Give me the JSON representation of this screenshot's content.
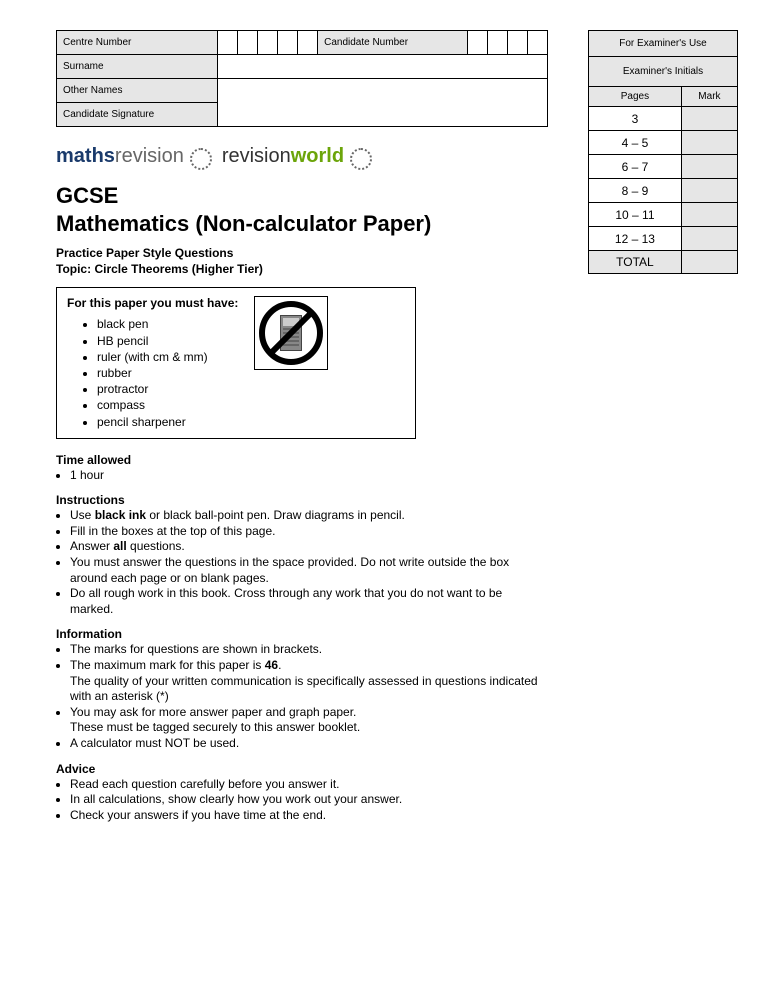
{
  "candidate_box": {
    "centre_number_label": "Centre Number",
    "candidate_number_label": "Candidate Number",
    "surname_label": "Surname",
    "other_names_label": "Other Names",
    "candidate_signature_label": "Candidate Signature"
  },
  "logos": {
    "maths_prefix": "maths",
    "maths_suffix": "revision",
    "rw_prefix": "revision",
    "rw_suffix": "world"
  },
  "title_line1": "GCSE",
  "title_line2": "Mathematics (Non-calculator Paper)",
  "subtitle_line1": "Practice Paper Style Questions",
  "subtitle_line2": "Topic: Circle Theorems (Higher Tier)",
  "equipment": {
    "heading": "For this paper you must have:",
    "items": [
      "black pen",
      "HB pencil",
      "ruler (with cm & mm)",
      "rubber",
      "protractor",
      "compass",
      "pencil sharpener"
    ]
  },
  "time": {
    "heading": "Time allowed",
    "items": [
      "1 hour"
    ]
  },
  "instructions": {
    "heading": "Instructions",
    "items": [
      "Use <b>black ink</b> or black ball-point pen. Draw diagrams in pencil.",
      "Fill in the boxes at the top of this page.",
      "Answer <b>all</b> questions.",
      "You must answer the questions in the space provided. Do not write outside the box around each page or on blank pages.",
      "Do all rough work in this book. Cross through any work that you do not want to be marked."
    ]
  },
  "information": {
    "heading": "Information",
    "items": [
      "The marks for questions are shown in brackets.",
      "The maximum mark for this paper is <b>46</b>.<br>The quality of your written communication is specifically assessed in questions indicated with an asterisk (*)",
      "You may ask for more answer paper and graph paper.<br>These must be tagged securely to this answer booklet.",
      "A calculator must NOT be used."
    ]
  },
  "advice": {
    "heading": "Advice",
    "items": [
      "Read each question carefully before you answer it.",
      "In all calculations, show clearly how you work out your answer.",
      "Check your answers if you have time at the end."
    ]
  },
  "examiner": {
    "for_use": "For Examiner's Use",
    "initials": "Examiner's Initials",
    "pages_label": "Pages",
    "mark_label": "Mark",
    "rows": [
      "3",
      "4 – 5",
      "6 – 7",
      "8 – 9",
      "10 – 11",
      "12 – 13"
    ],
    "total_label": "TOTAL"
  }
}
